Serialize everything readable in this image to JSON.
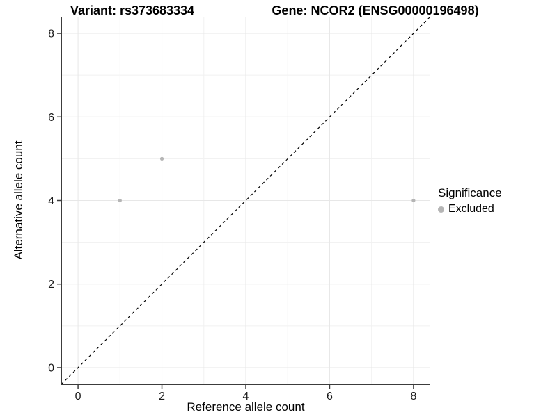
{
  "title": {
    "variant": "Variant: rs373683334",
    "gene": "Gene: NCOR2 (ENSG00000196498)"
  },
  "axis": {
    "x_label": "Reference allele count",
    "y_label": "Alternative allele count"
  },
  "legend": {
    "title": "Significance",
    "items": [
      {
        "label": "Excluded",
        "marker": "circle-icon",
        "color": "#b5b5b5"
      }
    ]
  },
  "colors": {
    "background": "#ffffff",
    "grid_major": "#e7e7e7",
    "grid_minor": "#f1f1f1",
    "axis_line": "#3c3c3c",
    "tick_text": "#1a1a1a",
    "identity_line": "#000000",
    "excluded_point": "#b5b5b5"
  },
  "chart_data": {
    "type": "scatter",
    "title": "Variant: rs373683334   Gene: NCOR2 (ENSG00000196498)",
    "xlabel": "Reference allele count",
    "ylabel": "Alternative allele count",
    "xlim": [
      -0.4,
      8.4
    ],
    "ylim": [
      -0.4,
      8.4
    ],
    "x_ticks": [
      0,
      2,
      4,
      6,
      8
    ],
    "y_ticks": [
      0,
      2,
      4,
      6,
      8
    ],
    "x_minor": [
      1,
      3,
      5,
      7
    ],
    "y_minor": [
      1,
      3,
      5,
      7
    ],
    "grid": "on",
    "legend_position": "right",
    "series": [
      {
        "name": "Excluded",
        "color": "#b5b5b5",
        "marker_radius": 2.6,
        "points": [
          [
            1,
            4
          ],
          [
            2,
            5
          ],
          [
            8,
            4
          ]
        ]
      }
    ],
    "reference_line": {
      "kind": "identity",
      "equation": "y = x",
      "style": "dashed",
      "color": "#000000"
    }
  }
}
